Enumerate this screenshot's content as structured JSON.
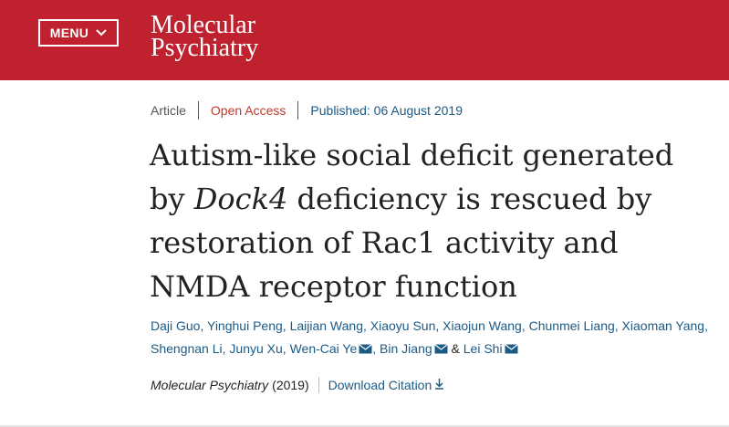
{
  "header": {
    "menu_label": "MENU",
    "logo_line1": "Molecular",
    "logo_line2": "Psychiatry",
    "brand_color": "#c0212f"
  },
  "meta": {
    "type": "Article",
    "access": "Open Access",
    "published": "Published: 06 August 2019"
  },
  "title": {
    "part1": "Autism-like social deficit generated by",
    "gene": "Dock4",
    "part2": " deficiency is rescued by restoration of Rac1 activity and NMDA receptor function"
  },
  "authors": [
    "Daji Guo",
    "Yinghui Peng",
    "Laijian Wang",
    "Xiaoyu Sun",
    "Xiaojun Wang",
    "Chunmei Liang",
    "Xiaoman Yang",
    "Shengnan Li",
    "Junyu Xu",
    "Wen-Cai Ye",
    "Bin Jiang",
    "Lei Shi"
  ],
  "authors_conjunction": "&",
  "citation": {
    "journal": "Molecular Psychiatry",
    "year": "(2019)",
    "download_label": "Download Citation"
  },
  "icons": {
    "mail": "envelope-icon",
    "download": "download-icon",
    "menu_chevron": "chevron-down-icon"
  }
}
